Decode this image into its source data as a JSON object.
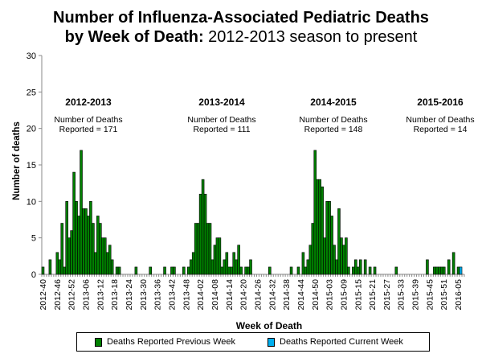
{
  "chart_data": {
    "type": "bar",
    "title_line1": "Number of Influenza-Associated Pediatric Deaths",
    "title_line2_bold": "by Week of Death:",
    "title_line2_rest": " 2012-2013 season to present",
    "xlabel": "Week of Death",
    "ylabel": "Number of deaths",
    "ylim": [
      0,
      30
    ],
    "yticks": [
      0,
      5,
      10,
      15,
      20,
      25,
      30
    ],
    "grid": false,
    "legend_placement": "bottom",
    "categories": [
      "2012-40",
      "2012-41",
      "2012-42",
      "2012-43",
      "2012-44",
      "2012-45",
      "2012-46",
      "2012-47",
      "2012-48",
      "2012-49",
      "2012-50",
      "2012-51",
      "2012-52",
      "2013-01",
      "2013-02",
      "2013-03",
      "2013-04",
      "2013-05",
      "2013-06",
      "2013-07",
      "2013-08",
      "2013-09",
      "2013-10",
      "2013-11",
      "2013-12",
      "2013-13",
      "2013-14",
      "2013-15",
      "2013-16",
      "2013-17",
      "2013-18",
      "2013-19",
      "2013-20",
      "2013-21",
      "2013-22",
      "2013-23",
      "2013-24",
      "2013-25",
      "2013-26",
      "2013-27",
      "2013-28",
      "2013-29",
      "2013-30",
      "2013-31",
      "2013-32",
      "2013-33",
      "2013-34",
      "2013-35",
      "2013-36",
      "2013-37",
      "2013-38",
      "2013-39",
      "2013-40",
      "2013-41",
      "2013-42",
      "2013-43",
      "2013-44",
      "2013-45",
      "2013-46",
      "2013-47",
      "2013-48",
      "2013-49",
      "2013-50",
      "2013-51",
      "2013-52",
      "2014-01",
      "2014-02",
      "2014-03",
      "2014-04",
      "2014-05",
      "2014-06",
      "2014-07",
      "2014-08",
      "2014-09",
      "2014-10",
      "2014-11",
      "2014-12",
      "2014-13",
      "2014-14",
      "2014-15",
      "2014-16",
      "2014-17",
      "2014-18",
      "2014-19",
      "2014-20",
      "2014-21",
      "2014-22",
      "2014-23",
      "2014-24",
      "2014-25",
      "2014-26",
      "2014-27",
      "2014-28",
      "2014-29",
      "2014-30",
      "2014-31",
      "2014-32",
      "2014-33",
      "2014-34",
      "2014-35",
      "2014-36",
      "2014-37",
      "2014-38",
      "2014-39",
      "2014-40",
      "2014-41",
      "2014-42",
      "2014-43",
      "2014-44",
      "2014-45",
      "2014-46",
      "2014-47",
      "2014-48",
      "2014-49",
      "2014-50",
      "2014-51",
      "2014-52",
      "2014-53",
      "2015-01",
      "2015-02",
      "2015-03",
      "2015-04",
      "2015-05",
      "2015-06",
      "2015-07",
      "2015-08",
      "2015-09",
      "2015-10",
      "2015-11",
      "2015-12",
      "2015-13",
      "2015-14",
      "2015-15",
      "2015-16",
      "2015-17",
      "2015-18",
      "2015-19",
      "2015-20",
      "2015-21",
      "2015-22",
      "2015-23",
      "2015-24",
      "2015-25",
      "2015-26",
      "2015-27",
      "2015-28",
      "2015-29",
      "2015-30",
      "2015-31",
      "2015-32",
      "2015-33",
      "2015-34",
      "2015-35",
      "2015-36",
      "2015-37",
      "2015-38",
      "2015-39",
      "2015-40",
      "2015-41",
      "2015-42",
      "2015-43",
      "2015-44",
      "2015-45",
      "2015-46",
      "2015-47",
      "2015-48",
      "2015-49",
      "2015-50",
      "2015-51",
      "2015-52",
      "2016-01",
      "2016-02",
      "2016-03",
      "2016-04",
      "2016-05",
      "2016-06",
      "2016-07"
    ],
    "xtick_labels": [
      "2012-40",
      "2012-46",
      "2012-52",
      "2013-06",
      "2013-12",
      "2013-18",
      "2013-24",
      "2013-30",
      "2013-36",
      "2013-42",
      "2013-48",
      "2014-02",
      "2014-08",
      "2014-14",
      "2014-20",
      "2014-26",
      "2014-32",
      "2014-38",
      "2014-44",
      "2014-50",
      "2015-03",
      "2015-09",
      "2015-15",
      "2015-21",
      "2015-27",
      "2015-33",
      "2015-39",
      "2015-45",
      "2015-51",
      "2016-05"
    ],
    "series": [
      {
        "name": "Deaths Reported Previous Week",
        "color": "#008000",
        "values": [
          1,
          0,
          0,
          2,
          0,
          0,
          3,
          2,
          7,
          1,
          10,
          5,
          6,
          14,
          10,
          8,
          17,
          9,
          9,
          8,
          10,
          7,
          3,
          8,
          7,
          5,
          5,
          3,
          4,
          2,
          0,
          1,
          1,
          0,
          0,
          0,
          0,
          0,
          0,
          1,
          0,
          0,
          0,
          0,
          0,
          1,
          0,
          0,
          0,
          0,
          0,
          1,
          0,
          0,
          1,
          1,
          0,
          0,
          0,
          1,
          0,
          1,
          2,
          3,
          7,
          7,
          11,
          13,
          11,
          7,
          7,
          2,
          4,
          5,
          5,
          1,
          2,
          3,
          1,
          1,
          3,
          2,
          4,
          1,
          0,
          1,
          1,
          2,
          0,
          0,
          0,
          0,
          0,
          0,
          0,
          1,
          0,
          0,
          0,
          0,
          0,
          0,
          0,
          0,
          1,
          0,
          0,
          1,
          0,
          3,
          1,
          2,
          4,
          7,
          17,
          13,
          13,
          12,
          5,
          10,
          10,
          8,
          4,
          2,
          9,
          5,
          4,
          5,
          1,
          0,
          1,
          2,
          1,
          2,
          0,
          2,
          0,
          1,
          0,
          1,
          0,
          0,
          0,
          0,
          0,
          0,
          0,
          0,
          1,
          0,
          0,
          0,
          0,
          0,
          0,
          0,
          0,
          0,
          0,
          0,
          0,
          2,
          0,
          0,
          1,
          1,
          1,
          1,
          1,
          0,
          2,
          0,
          3,
          0,
          1,
          0,
          0
        ]
      },
      {
        "name": "Deaths Reported Current Week",
        "color": "#00b0f0",
        "points": {
          "2016-06": 1
        }
      }
    ],
    "annotations": [
      {
        "season": "2012-2013",
        "line1": "Number of Deaths",
        "line2": "Reported = 171"
      },
      {
        "season": "2013-2014",
        "line1": "Number of Deaths",
        "line2": "Reported = 111"
      },
      {
        "season": "2014-2015",
        "line1": "Number of Deaths",
        "line2": "Reported = 148"
      },
      {
        "season": "2015-2016",
        "line1": "Number of Deaths",
        "line2": "Reported = 14"
      }
    ]
  }
}
